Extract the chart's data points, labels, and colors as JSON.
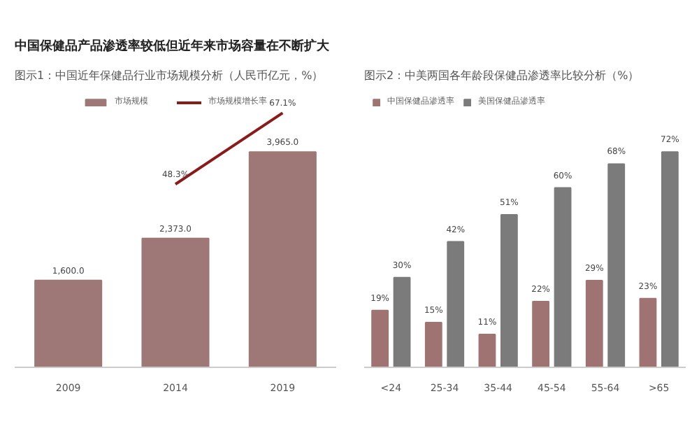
{
  "chart_data": [
    {
      "type": "bar",
      "title": "中国保健品产品渗透率较低但近年来市场容量在不断扩大",
      "subtitle": "图示1：中国近年保健品行业市场规模分析（人民币亿元，%）",
      "categories": [
        "2009",
        "2014",
        "2019"
      ],
      "tick_labels": "x",
      "grid": false,
      "legend": "top",
      "series": [
        {
          "name": "市场规模",
          "type": "bar",
          "color": "#9e7876",
          "values": [
            1600,
            2373,
            3965
          ],
          "value_labels": [
            "1,600.0",
            "2,373.0",
            "3,965.0"
          ]
        },
        {
          "name": "市场规模增长率",
          "type": "line",
          "axis": "y2",
          "color": "#8b1a1a",
          "values": [
            null,
            48.3,
            67.1
          ],
          "value_labels": [
            null,
            "48.3%",
            "67.1%"
          ]
        }
      ]
    },
    {
      "type": "bar",
      "title": "图示2：中美两国各年龄段保健品渗透率比较分析（%）",
      "categories": [
        "<24",
        "25-34",
        "35-44",
        "45-54",
        "55-64",
        ">65"
      ],
      "tick_labels": "x",
      "grid": false,
      "legend": "top left",
      "series": [
        {
          "name": "中国保健品渗透率",
          "color": "#a07373",
          "values": [
            19,
            15,
            11,
            22,
            29,
            23
          ],
          "value_labels": [
            "19%",
            "15%",
            "11%",
            "22%",
            "29%",
            "23%"
          ]
        },
        {
          "name": "美国保健品渗透率",
          "color": "#7b7b7b",
          "values": [
            30,
            42,
            51,
            60,
            68,
            72
          ],
          "value_labels": [
            "30%",
            "42%",
            "51%",
            "60%",
            "68%",
            "72%"
          ]
        }
      ]
    }
  ]
}
